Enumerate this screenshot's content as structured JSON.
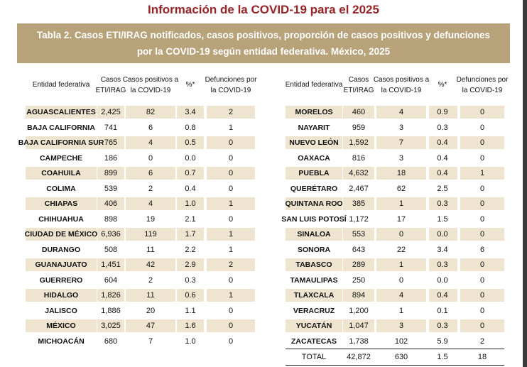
{
  "title": "Información de la COVID-19 para el 2025",
  "banner": {
    "line1": "Tabla 2. Casos ETI/IRAG notificados, casos positivos, proporción de casos positivos  y defunciones",
    "line2": "por la COVID-19 según entidad federativa. México, 2025"
  },
  "headers": {
    "entidad": "Entidad federativa",
    "casos_l1": "Casos",
    "casos_l2": "ETI/IRAG",
    "positivos_l1": "Casos positivos a",
    "positivos_l2": "la COVID-19",
    "pct": "%*",
    "def_l1": "Defunciones por",
    "def_l2": "la COVID-19"
  },
  "left": [
    [
      "AGUASCALIENTES",
      "2,425",
      "82",
      "3.4",
      "2"
    ],
    [
      "BAJA CALIFORNIA",
      "741",
      "6",
      "0.8",
      "1"
    ],
    [
      "BAJA CALIFORNIA SUR",
      "765",
      "4",
      "0.5",
      "0"
    ],
    [
      "CAMPECHE",
      "186",
      "0",
      "0.0",
      "0"
    ],
    [
      "COAHUILA",
      "899",
      "6",
      "0.7",
      "0"
    ],
    [
      "COLIMA",
      "539",
      "2",
      "0.4",
      "0"
    ],
    [
      "CHIAPAS",
      "406",
      "4",
      "1.0",
      "1"
    ],
    [
      "CHIHUAHUA",
      "898",
      "19",
      "2.1",
      "0"
    ],
    [
      "CIUDAD DE MÉXICO",
      "6,936",
      "119",
      "1.7",
      "1"
    ],
    [
      "DURANGO",
      "508",
      "11",
      "2.2",
      "1"
    ],
    [
      "GUANAJUATO",
      "1,451",
      "42",
      "2.9",
      "2"
    ],
    [
      "GUERRERO",
      "604",
      "2",
      "0.3",
      "0"
    ],
    [
      "HIDALGO",
      "1,826",
      "11",
      "0.6",
      "1"
    ],
    [
      "JALISCO",
      "1,886",
      "20",
      "1.1",
      "0"
    ],
    [
      "MÉXICO",
      "3,025",
      "47",
      "1.6",
      "0"
    ],
    [
      "MICHOACÁN",
      "680",
      "7",
      "1.0",
      "0"
    ]
  ],
  "right": [
    [
      "MORELOS",
      "460",
      "4",
      "0.9",
      "0"
    ],
    [
      "NAYARIT",
      "959",
      "3",
      "0.3",
      "0"
    ],
    [
      "NUEVO LEÓN",
      "1,592",
      "7",
      "0.4",
      "0"
    ],
    [
      "OAXACA",
      "816",
      "3",
      "0.4",
      "0"
    ],
    [
      "PUEBLA",
      "4,632",
      "18",
      "0.4",
      "1"
    ],
    [
      "QUERÉTARO",
      "2,467",
      "62",
      "2.5",
      "0"
    ],
    [
      "QUINTANA ROO",
      "385",
      "1",
      "0.3",
      "0"
    ],
    [
      "SAN LUIS POTOSÍ",
      "1,172",
      "17",
      "1.5",
      "0"
    ],
    [
      "SINALOA",
      "553",
      "0",
      "0.0",
      "0"
    ],
    [
      "SONORA",
      "643",
      "22",
      "3.4",
      "6"
    ],
    [
      "TABASCO",
      "289",
      "1",
      "0.3",
      "0"
    ],
    [
      "TAMAULIPAS",
      "250",
      "0",
      "0.0",
      "0"
    ],
    [
      "TLAXCALA",
      "894",
      "4",
      "0.4",
      "0"
    ],
    [
      "VERACRUZ",
      "1,200",
      "1",
      "0.1",
      "0"
    ],
    [
      "YUCATÁN",
      "1,047",
      "3",
      "0.3",
      "0"
    ],
    [
      "ZACATECAS",
      "1,738",
      "102",
      "5.9",
      "2"
    ]
  ],
  "total": [
    "TOTAL",
    "42,872",
    "630",
    "1.5",
    "18"
  ]
}
